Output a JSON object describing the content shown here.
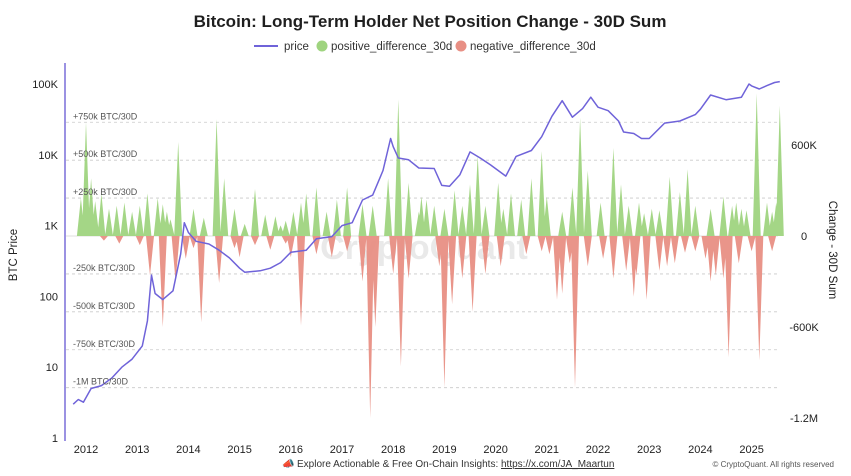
{
  "chart_data": {
    "type": "area",
    "title": "Bitcoin: Long-Term Holder Net Position Change - 30D Sum",
    "legend": {
      "placement": "top-center",
      "items": [
        {
          "name": "price",
          "color": "#6f63d9",
          "shape": "line"
        },
        {
          "name": "positive_difference_30d",
          "color": "#9fd47f",
          "shape": "circle"
        },
        {
          "name": "negative_difference_30d",
          "color": "#e88f84",
          "shape": "circle"
        }
      ]
    },
    "x_ticks": [
      "2012",
      "2013",
      "2014",
      "2015",
      "2016",
      "2017",
      "2018",
      "2019",
      "2020",
      "2021",
      "2022",
      "2023",
      "2024",
      "2025"
    ],
    "y_left": {
      "label": "BTC Price",
      "scale": "log",
      "range": [
        1,
        100000
      ],
      "ticks": [
        "1",
        "10",
        "100",
        "1K",
        "10K",
        "100K"
      ]
    },
    "y_right": {
      "label": "Change - 30D Sum",
      "range": [
        -1300000,
        1000000
      ],
      "ticks": [
        "600K",
        "0",
        "-600K",
        "-1.2M"
      ]
    },
    "grid_labels": [
      "+750k BTC/30D",
      "+500k BTC/30D",
      "+250k BTC/30D",
      "-250k BTC/30D",
      "-500k BTC/30D",
      "-750k BTC/30D",
      "-1M BTC/30D"
    ],
    "grid_values": [
      750000,
      500000,
      250000,
      -250000,
      -500000,
      -750000,
      -1000000
    ],
    "price_series": {
      "name": "price",
      "x": [
        2011.75,
        2011.85,
        2011.95,
        2012.1,
        2012.3,
        2012.5,
        2012.7,
        2012.9,
        2013.1,
        2013.2,
        2013.28,
        2013.35,
        2013.5,
        2013.7,
        2013.85,
        2013.92,
        2014.0,
        2014.15,
        2014.4,
        2014.6,
        2014.8,
        2015.0,
        2015.1,
        2015.4,
        2015.6,
        2015.8,
        2016.0,
        2016.3,
        2016.5,
        2016.8,
        2017.0,
        2017.2,
        2017.4,
        2017.6,
        2017.8,
        2017.95,
        2018.0,
        2018.1,
        2018.3,
        2018.5,
        2018.8,
        2018.95,
        2019.1,
        2019.3,
        2019.5,
        2019.7,
        2019.9,
        2020.2,
        2020.4,
        2020.7,
        2020.9,
        2021.1,
        2021.3,
        2021.5,
        2021.7,
        2021.86,
        2022.0,
        2022.2,
        2022.4,
        2022.5,
        2022.7,
        2022.85,
        2023.0,
        2023.3,
        2023.6,
        2023.9,
        2024.0,
        2024.2,
        2024.5,
        2024.8,
        2024.95,
        2025.0,
        2025.15,
        2025.3,
        2025.45,
        2025.55
      ],
      "values": [
        3,
        3.5,
        3.2,
        5,
        5.5,
        7,
        10,
        13,
        20,
        45,
        200,
        110,
        90,
        120,
        400,
        1100,
        800,
        600,
        550,
        450,
        350,
        250,
        220,
        230,
        250,
        300,
        420,
        450,
        650,
        700,
        1000,
        1100,
        2300,
        2700,
        6000,
        17000,
        13000,
        9000,
        8500,
        6500,
        6400,
        3700,
        3600,
        5200,
        11000,
        9000,
        7200,
        5000,
        9500,
        11500,
        18000,
        35000,
        58000,
        34000,
        45000,
        65000,
        47000,
        42000,
        30000,
        21000,
        20000,
        17000,
        17000,
        28000,
        30000,
        37000,
        44000,
        70000,
        60000,
        65000,
        100000,
        94000,
        85000,
        95000,
        105000,
        108000
      ]
    },
    "series": [
      {
        "name": "positive_difference_30d",
        "x": [
          2011.9,
          2012.0,
          2012.1,
          2012.18,
          2012.3,
          2012.45,
          2012.6,
          2012.75,
          2012.9,
          2013.05,
          2013.2,
          2013.4,
          2013.5,
          2013.58,
          2013.65,
          2013.8,
          2014.1,
          2014.3,
          2014.55,
          2014.7,
          2014.9,
          2015.1,
          2015.3,
          2015.5,
          2015.7,
          2015.8,
          2015.9,
          2016.05,
          2016.2,
          2016.3,
          2016.5,
          2016.7,
          2016.9,
          2017.1,
          2017.4,
          2017.6,
          2017.9,
          2018.1,
          2018.3,
          2018.5,
          2018.55,
          2018.65,
          2018.8,
          2019.0,
          2019.2,
          2019.35,
          2019.5,
          2019.65,
          2019.8,
          2020.05,
          2020.15,
          2020.3,
          2020.5,
          2020.7,
          2020.9,
          2021.0,
          2021.3,
          2021.5,
          2021.65,
          2021.8,
          2022.05,
          2022.3,
          2022.45,
          2022.6,
          2022.8,
          2022.9,
          2023.05,
          2023.2,
          2023.4,
          2023.6,
          2023.75,
          2023.9,
          2024.2,
          2024.45,
          2024.62,
          2024.7,
          2024.8,
          2024.9,
          2025.1,
          2025.3,
          2025.4,
          2025.48,
          2025.55
        ],
        "values": [
          250000,
          750000,
          380000,
          230000,
          280000,
          180000,
          200000,
          220000,
          160000,
          200000,
          280000,
          250000,
          210000,
          160000,
          110000,
          620000,
          180000,
          120000,
          770000,
          380000,
          180000,
          80000,
          310000,
          140000,
          130000,
          70000,
          100000,
          160000,
          220000,
          280000,
          320000,
          160000,
          240000,
          320000,
          210000,
          200000,
          380000,
          900000,
          350000,
          160000,
          260000,
          240000,
          200000,
          180000,
          300000,
          200000,
          340000,
          530000,
          200000,
          350000,
          180000,
          280000,
          240000,
          380000,
          560000,
          260000,
          160000,
          320000,
          780000,
          430000,
          220000,
          580000,
          340000,
          200000,
          220000,
          150000,
          180000,
          170000,
          390000,
          290000,
          440000,
          200000,
          180000,
          260000,
          200000,
          220000,
          180000,
          170000,
          940000,
          220000,
          160000,
          220000,
          860000
        ]
      },
      {
        "name": "negative_difference_30d",
        "x": [
          2012.35,
          2012.65,
          2013.05,
          2013.25,
          2013.5,
          2013.75,
          2013.95,
          2014.1,
          2014.25,
          2014.6,
          2014.9,
          2015.0,
          2015.3,
          2015.6,
          2015.9,
          2016.0,
          2016.2,
          2016.5,
          2016.8,
          2017.1,
          2017.4,
          2017.55,
          2017.65,
          2018.0,
          2018.15,
          2018.3,
          2018.9,
          2019.0,
          2019.15,
          2019.35,
          2019.55,
          2019.8,
          2020.1,
          2020.6,
          2020.9,
          2021.05,
          2021.2,
          2021.3,
          2021.45,
          2021.55,
          2021.8,
          2022.1,
          2022.3,
          2022.55,
          2022.7,
          2022.75,
          2022.95,
          2023.2,
          2023.35,
          2023.5,
          2023.7,
          2023.9,
          2024.1,
          2024.2,
          2024.3,
          2024.45,
          2024.55,
          2024.75,
          2025.0,
          2025.15,
          2025.4
        ],
        "values": [
          -30000,
          -50000,
          -60000,
          -260000,
          -600000,
          -300000,
          -150000,
          -80000,
          -570000,
          -310000,
          -80000,
          -140000,
          -60000,
          -90000,
          -50000,
          -140000,
          -590000,
          -120000,
          -140000,
          -100000,
          -300000,
          -1200000,
          -600000,
          -250000,
          -860000,
          -280000,
          -200000,
          -1000000,
          -450000,
          -280000,
          -500000,
          -250000,
          -200000,
          -120000,
          -100000,
          -120000,
          -420000,
          -380000,
          -180000,
          -1000000,
          -200000,
          -150000,
          -280000,
          -230000,
          -400000,
          -260000,
          -420000,
          -230000,
          -200000,
          -180000,
          -110000,
          -100000,
          -150000,
          -300000,
          -260000,
          -280000,
          -800000,
          -180000,
          -100000,
          -820000,
          -100000
        ]
      }
    ]
  },
  "watermark": "CryptoQuant",
  "footer": {
    "icon": "megaphone-icon",
    "prefix": "Explore Actionable & Free On-Chain Insights: ",
    "link": "https://x.com/JA_Maartun",
    "copyright": "© CryptoQuant. All rights reserved"
  }
}
